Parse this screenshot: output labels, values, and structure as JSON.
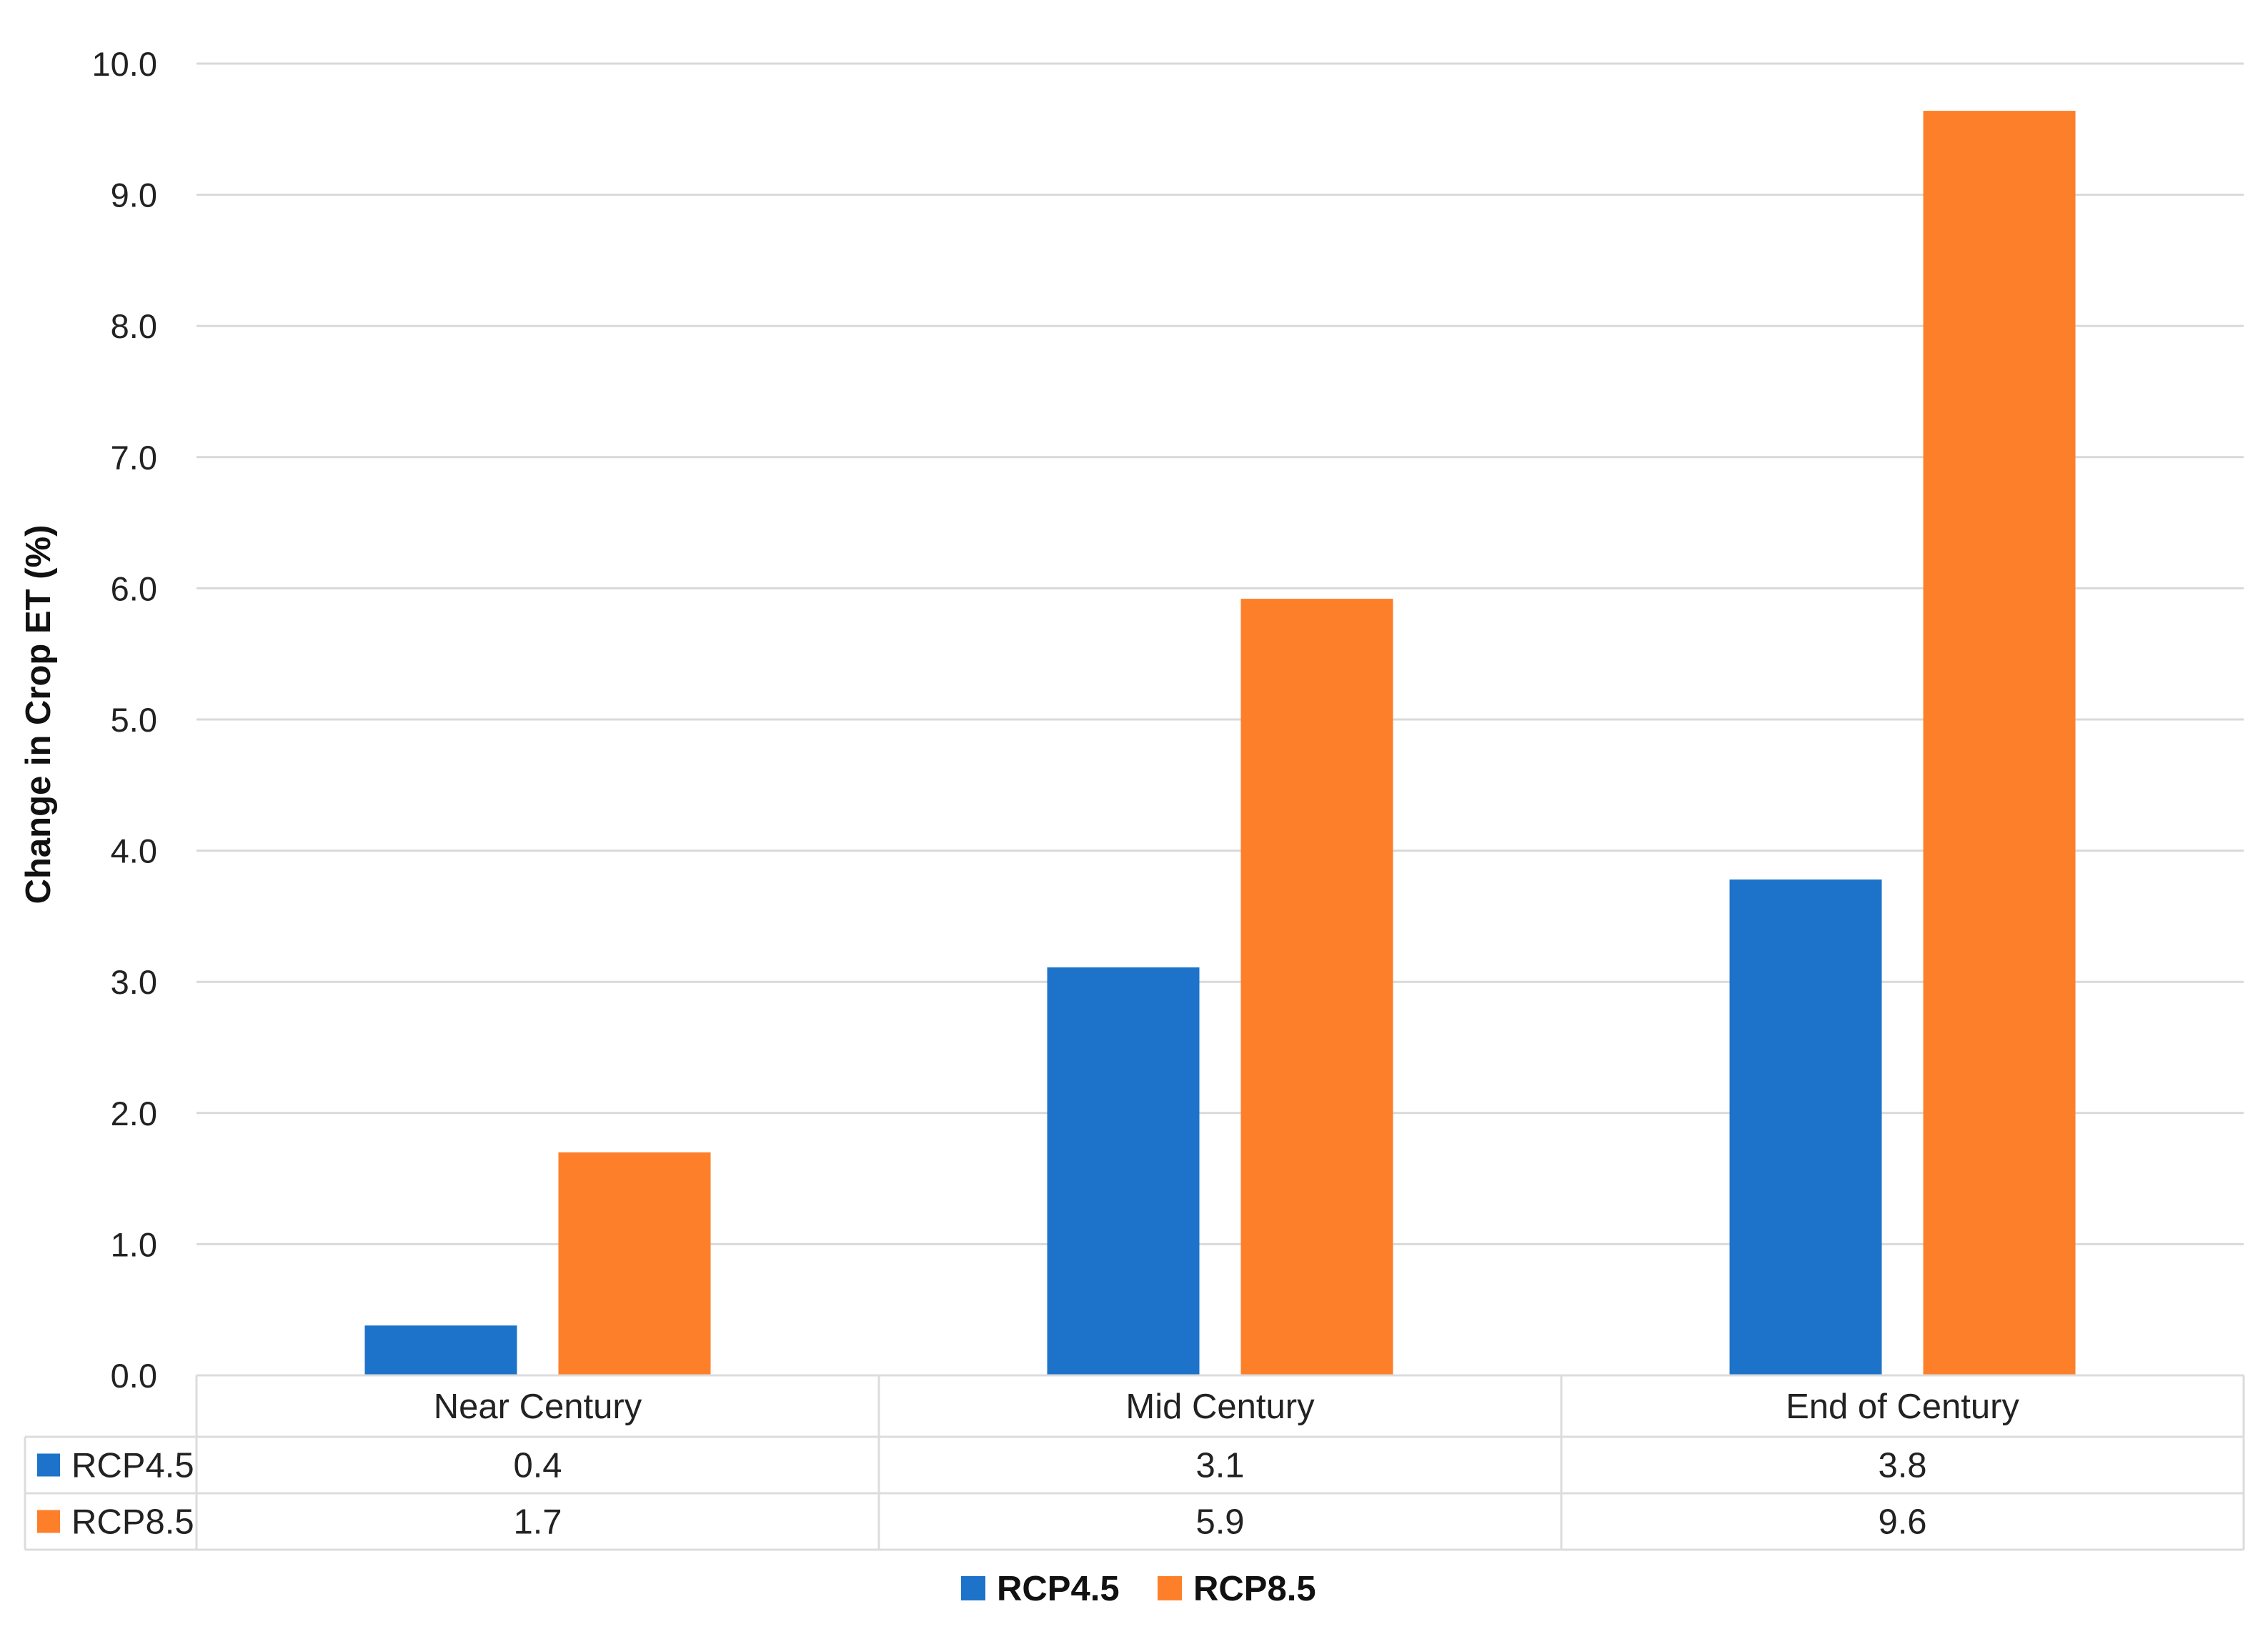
{
  "chart_data": {
    "type": "bar",
    "title": "",
    "xlabel": "",
    "ylabel": "Change in Crop ET (%)",
    "ylim": [
      0,
      10
    ],
    "y_ticks": [
      "0.0",
      "1.0",
      "2.0",
      "3.0",
      "4.0",
      "5.0",
      "6.0",
      "7.0",
      "8.0",
      "9.0",
      "10.0"
    ],
    "grid": true,
    "legend_position": "bottom",
    "categories": [
      "Near Century",
      "Mid Century",
      "End of Century"
    ],
    "series": [
      {
        "name": "RCP4.5",
        "color": "#1c73c9",
        "values": [
          0.38,
          3.11,
          3.78
        ],
        "labels": [
          "0.4",
          "3.1",
          "3.8"
        ]
      },
      {
        "name": "RCP8.5",
        "color": "#fe7f2a",
        "values": [
          1.7,
          5.92,
          9.64
        ],
        "labels": [
          "1.7",
          "5.9",
          "9.6"
        ]
      }
    ],
    "data_table": true
  }
}
